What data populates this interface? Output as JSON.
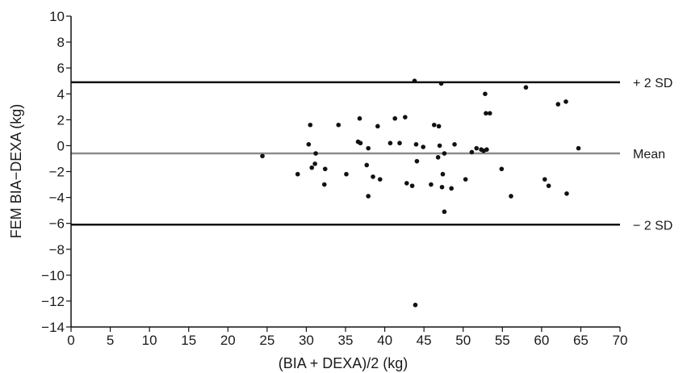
{
  "chart_data": {
    "type": "scatter",
    "title": "",
    "xlabel": "(BIA + DEXA)/2 (kg)",
    "ylabel": "FEM BIA−DEXA (kg)",
    "xlim": [
      0,
      70
    ],
    "ylim": [
      -14,
      10
    ],
    "x_ticks": [
      0,
      5,
      10,
      15,
      20,
      25,
      30,
      35,
      40,
      45,
      50,
      55,
      60,
      65,
      70
    ],
    "y_ticks": [
      10,
      8,
      6,
      4,
      2,
      0,
      -2,
      -4,
      -6,
      -8,
      -10,
      -12,
      -14
    ],
    "x_tick_labels": [
      "0",
      "5",
      "10",
      "15",
      "20",
      "25",
      "30",
      "35",
      "40",
      "45",
      "50",
      "55",
      "60",
      "65",
      "70"
    ],
    "y_tick_labels": [
      "10",
      "8",
      "6",
      "4",
      "2",
      "0",
      "−2",
      "−4",
      "−6",
      "−8",
      "−10",
      "−12",
      "−14"
    ],
    "grid": false,
    "reference_lines": [
      {
        "label": "+ 2 SD",
        "y": 4.9,
        "color": "#111111"
      },
      {
        "label": "Mean",
        "y": -0.6,
        "color": "#8c8c8c"
      },
      {
        "label": "− 2 SD",
        "y": -6.1,
        "color": "#111111"
      }
    ],
    "series": [
      {
        "points": [
          [
            24.4,
            -0.8
          ],
          [
            28.9,
            -2.2
          ],
          [
            30.3,
            0.1
          ],
          [
            30.5,
            1.6
          ],
          [
            30.7,
            -1.7
          ],
          [
            31.2,
            -0.6
          ],
          [
            31.1,
            -1.4
          ],
          [
            32.4,
            -1.8
          ],
          [
            32.3,
            -3.0
          ],
          [
            34.1,
            1.6
          ],
          [
            35.1,
            -2.2
          ],
          [
            36.6,
            0.3
          ],
          [
            36.8,
            2.1
          ],
          [
            36.9,
            0.2
          ],
          [
            37.7,
            -1.5
          ],
          [
            37.9,
            -0.2
          ],
          [
            37.9,
            -3.9
          ],
          [
            38.5,
            -2.4
          ],
          [
            39.1,
            1.5
          ],
          [
            39.4,
            -2.6
          ],
          [
            40.7,
            0.2
          ],
          [
            41.3,
            2.1
          ],
          [
            41.9,
            0.2
          ],
          [
            42.6,
            2.2
          ],
          [
            42.8,
            -2.9
          ],
          [
            43.5,
            -3.1
          ],
          [
            43.8,
            5.0
          ],
          [
            44.0,
            0.1
          ],
          [
            44.1,
            -1.2
          ],
          [
            43.9,
            -12.3
          ],
          [
            44.9,
            -0.1
          ],
          [
            45.9,
            -3.0
          ],
          [
            46.3,
            1.6
          ],
          [
            46.8,
            -0.9
          ],
          [
            46.9,
            1.5
          ],
          [
            47.0,
            0.0
          ],
          [
            47.2,
            4.8
          ],
          [
            47.3,
            -3.2
          ],
          [
            47.4,
            -2.2
          ],
          [
            47.6,
            -0.6
          ],
          [
            47.6,
            -5.1
          ],
          [
            48.5,
            -3.3
          ],
          [
            48.9,
            0.1
          ],
          [
            50.3,
            -2.6
          ],
          [
            51.1,
            -0.5
          ],
          [
            51.7,
            -0.2
          ],
          [
            52.3,
            -0.3
          ],
          [
            52.6,
            -0.4
          ],
          [
            52.8,
            4.0
          ],
          [
            52.9,
            2.5
          ],
          [
            53.0,
            -0.3
          ],
          [
            53.4,
            2.5
          ],
          [
            54.9,
            -1.8
          ],
          [
            56.1,
            -3.9
          ],
          [
            58.0,
            4.5
          ],
          [
            60.4,
            -2.6
          ],
          [
            60.9,
            -3.1
          ],
          [
            62.1,
            3.2
          ],
          [
            63.1,
            3.4
          ],
          [
            63.2,
            -3.7
          ],
          [
            64.7,
            -0.2
          ]
        ]
      }
    ]
  }
}
